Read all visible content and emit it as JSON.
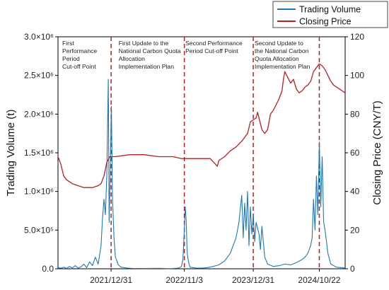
{
  "chart_data": {
    "type": "line",
    "x_tick_labels": [
      "2021/12/31",
      "2022/11/3",
      "2023/12/31",
      "2024/10/22"
    ],
    "y_left": {
      "label": "Trading Volume (t)",
      "ylim": [
        0,
        3000000
      ],
      "ticks": [
        {
          "value": 0,
          "label": "0.0"
        },
        {
          "value": 500000,
          "label": "5.0×10⁵"
        },
        {
          "value": 1000000,
          "label": "1.0×10⁶"
        },
        {
          "value": 1500000,
          "label": "1.5×10⁶"
        },
        {
          "value": 2000000,
          "label": "2.0×10⁶"
        },
        {
          "value": 2500000,
          "label": "2.5×10⁶"
        },
        {
          "value": 3000000,
          "label": "3.0×10⁶"
        }
      ]
    },
    "y_right": {
      "label": "Closing Price (CNY/T)",
      "ylim": [
        0,
        120
      ],
      "ticks": [
        {
          "value": 0,
          "label": "0"
        },
        {
          "value": 20,
          "label": "20"
        },
        {
          "value": 40,
          "label": "40"
        },
        {
          "value": 60,
          "label": "60"
        },
        {
          "value": 80,
          "label": "80"
        },
        {
          "value": 100,
          "label": "100"
        },
        {
          "value": 120,
          "label": "120"
        }
      ]
    },
    "legend": {
      "placement": "top-right",
      "entries": [
        {
          "name": "Trading Volume",
          "color": "#1f77b4"
        },
        {
          "name": "Closing Price",
          "color": "#b22222"
        }
      ]
    },
    "series": [
      {
        "name": "Trading Volume",
        "axis": "left",
        "color": "#1f77b4",
        "points": [
          [
            0.0,
            15000
          ],
          [
            0.01,
            8000
          ],
          [
            0.02,
            20000
          ],
          [
            0.03,
            5000
          ],
          [
            0.04,
            30000
          ],
          [
            0.05,
            12000
          ],
          [
            0.06,
            40000
          ],
          [
            0.07,
            8000
          ],
          [
            0.08,
            25000
          ],
          [
            0.09,
            60000
          ],
          [
            0.1,
            15000
          ],
          [
            0.11,
            90000
          ],
          [
            0.12,
            40000
          ],
          [
            0.13,
            150000
          ],
          [
            0.14,
            60000
          ],
          [
            0.15,
            300000
          ],
          [
            0.155,
            650000
          ],
          [
            0.16,
            900000
          ],
          [
            0.165,
            700000
          ],
          [
            0.17,
            1200000
          ],
          [
            0.175,
            2450000
          ],
          [
            0.178,
            600000
          ],
          [
            0.182,
            1300000
          ],
          [
            0.186,
            2100000
          ],
          [
            0.19,
            900000
          ],
          [
            0.195,
            400000
          ],
          [
            0.2,
            150000
          ],
          [
            0.21,
            50000
          ],
          [
            0.22,
            20000
          ],
          [
            0.24,
            10000
          ],
          [
            0.26,
            5000
          ],
          [
            0.3,
            4000
          ],
          [
            0.35,
            6000
          ],
          [
            0.38,
            3000
          ],
          [
            0.4,
            5000
          ],
          [
            0.42,
            8000
          ],
          [
            0.43,
            30000
          ],
          [
            0.435,
            120000
          ],
          [
            0.44,
            500000
          ],
          [
            0.443,
            800000
          ],
          [
            0.446,
            650000
          ],
          [
            0.45,
            200000
          ],
          [
            0.455,
            80000
          ],
          [
            0.46,
            20000
          ],
          [
            0.48,
            10000
          ],
          [
            0.5,
            8000
          ],
          [
            0.52,
            15000
          ],
          [
            0.54,
            30000
          ],
          [
            0.56,
            50000
          ],
          [
            0.58,
            100000
          ],
          [
            0.6,
            200000
          ],
          [
            0.62,
            400000
          ],
          [
            0.63,
            600000
          ],
          [
            0.64,
            950000
          ],
          [
            0.645,
            400000
          ],
          [
            0.65,
            850000
          ],
          [
            0.655,
            500000
          ],
          [
            0.66,
            1000000
          ],
          [
            0.665,
            300000
          ],
          [
            0.67,
            800000
          ],
          [
            0.675,
            450000
          ],
          [
            0.68,
            700000
          ],
          [
            0.685,
            350000
          ],
          [
            0.69,
            600000
          ],
          [
            0.7,
            450000
          ],
          [
            0.705,
            250000
          ],
          [
            0.71,
            550000
          ],
          [
            0.72,
            150000
          ],
          [
            0.73,
            60000
          ],
          [
            0.75,
            30000
          ],
          [
            0.77,
            40000
          ],
          [
            0.79,
            60000
          ],
          [
            0.81,
            50000
          ],
          [
            0.83,
            80000
          ],
          [
            0.85,
            120000
          ],
          [
            0.86,
            150000
          ],
          [
            0.87,
            200000
          ],
          [
            0.88,
            300000
          ],
          [
            0.885,
            400000
          ],
          [
            0.89,
            900000
          ],
          [
            0.895,
            500000
          ],
          [
            0.9,
            1200000
          ],
          [
            0.905,
            700000
          ],
          [
            0.91,
            1640000
          ],
          [
            0.915,
            800000
          ],
          [
            0.92,
            1450000
          ],
          [
            0.925,
            600000
          ],
          [
            0.93,
            500000
          ],
          [
            0.94,
            200000
          ],
          [
            0.95,
            60000
          ],
          [
            0.97,
            20000
          ],
          [
            1.0,
            10000
          ]
        ]
      },
      {
        "name": "Closing Price",
        "axis": "right",
        "color": "#b22222",
        "points": [
          [
            0.0,
            58
          ],
          [
            0.005,
            56
          ],
          [
            0.01,
            54
          ],
          [
            0.02,
            48
          ],
          [
            0.03,
            46
          ],
          [
            0.05,
            44
          ],
          [
            0.07,
            43
          ],
          [
            0.09,
            42
          ],
          [
            0.12,
            42
          ],
          [
            0.14,
            43
          ],
          [
            0.15,
            44
          ],
          [
            0.16,
            48
          ],
          [
            0.17,
            55
          ],
          [
            0.18,
            58
          ],
          [
            0.2,
            58
          ],
          [
            0.25,
            59
          ],
          [
            0.3,
            59
          ],
          [
            0.35,
            58
          ],
          [
            0.4,
            58
          ],
          [
            0.43,
            57
          ],
          [
            0.46,
            57
          ],
          [
            0.5,
            57
          ],
          [
            0.53,
            57
          ],
          [
            0.555,
            53
          ],
          [
            0.56,
            56
          ],
          [
            0.58,
            58
          ],
          [
            0.6,
            61
          ],
          [
            0.62,
            63
          ],
          [
            0.64,
            66
          ],
          [
            0.66,
            70
          ],
          [
            0.67,
            76
          ],
          [
            0.68,
            77
          ],
          [
            0.69,
            78
          ],
          [
            0.695,
            81
          ],
          [
            0.7,
            78
          ],
          [
            0.71,
            72
          ],
          [
            0.72,
            70
          ],
          [
            0.73,
            72
          ],
          [
            0.74,
            80
          ],
          [
            0.75,
            82
          ],
          [
            0.76,
            85
          ],
          [
            0.77,
            88
          ],
          [
            0.78,
            92
          ],
          [
            0.785,
            98
          ],
          [
            0.79,
            102
          ],
          [
            0.8,
            99
          ],
          [
            0.81,
            96
          ],
          [
            0.82,
            98
          ],
          [
            0.83,
            93
          ],
          [
            0.84,
            91
          ],
          [
            0.85,
            92
          ],
          [
            0.86,
            94
          ],
          [
            0.87,
            95
          ],
          [
            0.88,
            97
          ],
          [
            0.89,
            102
          ],
          [
            0.9,
            104
          ],
          [
            0.91,
            106
          ],
          [
            0.92,
            105
          ],
          [
            0.93,
            103
          ],
          [
            0.94,
            100
          ],
          [
            0.95,
            97
          ],
          [
            0.96,
            95
          ],
          [
            0.97,
            94
          ],
          [
            0.98,
            93
          ],
          [
            0.99,
            92
          ],
          [
            1.0,
            91
          ]
        ]
      }
    ],
    "event_lines": [
      {
        "x": 0.185,
        "label_lines": [
          "First",
          "Performance",
          "Period",
          "Cut-off Point"
        ]
      },
      {
        "x": 0.44,
        "label_lines": [
          "First Update to the",
          "National Carbon Quota",
          "Allocation",
          "Implementation Plan"
        ]
      },
      {
        "x": 0.68,
        "label_lines": [
          "Second Performance",
          "Period Cut-off Point"
        ]
      },
      {
        "x": 0.91,
        "label_lines": [
          "Second Update to",
          "the National Carbon",
          "Quota Allocation",
          "Implementation Plan"
        ]
      }
    ],
    "event_line_color": "#b22222",
    "grid": false
  }
}
